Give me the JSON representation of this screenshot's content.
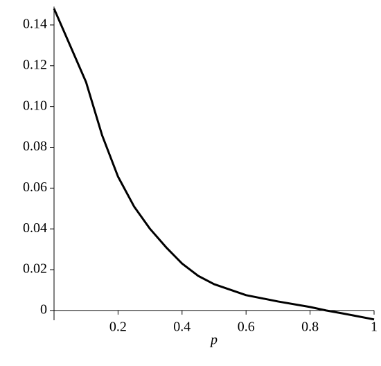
{
  "chart_data": {
    "type": "line",
    "x_label": "p",
    "x": [
      0,
      0.05,
      0.1,
      0.15,
      0.2,
      0.25,
      0.3,
      0.35,
      0.4,
      0.45,
      0.5,
      0.6,
      0.7,
      0.8,
      0.85,
      0.9,
      1
    ],
    "series": [
      {
        "color": "#000000",
        "values": [
          0.148,
          0.13,
          0.112,
          0.086,
          0.0656,
          0.051,
          0.04,
          0.031,
          0.023,
          0.017,
          0.0129,
          0.0075,
          0.0044,
          0.0017,
          0,
          -0.0014,
          -0.0044
        ]
      }
    ],
    "xlim": [
      0,
      1
    ],
    "ylim": [
      -0.0048,
      0.149
    ],
    "xticks": [
      0.2,
      0.4,
      0.6,
      0.8,
      1
    ],
    "yticks": [
      0,
      0.02,
      0.04,
      0.06,
      0.08,
      {
        "value": 0.1,
        "label": "0.10"
      },
      0.12,
      0.14
    ]
  }
}
